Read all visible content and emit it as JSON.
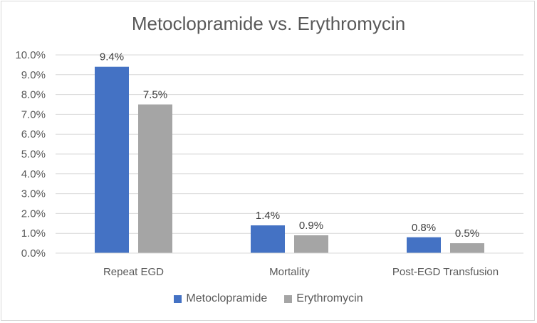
{
  "chart_data": {
    "type": "bar",
    "title": "Metoclopramide vs. Erythromycin",
    "xlabel": "",
    "ylabel": "",
    "categories": [
      "Repeat EGD",
      "Mortality",
      "Post-EGD Transfusion"
    ],
    "series": [
      {
        "name": "Metoclopramide",
        "values": [
          9.4,
          1.4,
          0.8
        ],
        "labels": [
          "9.4%",
          "1.4%",
          "0.8%"
        ],
        "color": "#4472c4"
      },
      {
        "name": "Erythromycin",
        "values": [
          7.5,
          0.9,
          0.5
        ],
        "labels": [
          "7.5%",
          "0.9%",
          "0.5%"
        ],
        "color": "#a5a5a5"
      }
    ],
    "ylim": [
      0,
      10
    ],
    "yticks": [
      0,
      1,
      2,
      3,
      4,
      5,
      6,
      7,
      8,
      9,
      10
    ],
    "ytick_labels": [
      "0.0%",
      "1.0%",
      "2.0%",
      "3.0%",
      "4.0%",
      "5.0%",
      "6.0%",
      "7.0%",
      "8.0%",
      "9.0%",
      "10.0%"
    ],
    "grid": true,
    "legend_position": "bottom"
  }
}
